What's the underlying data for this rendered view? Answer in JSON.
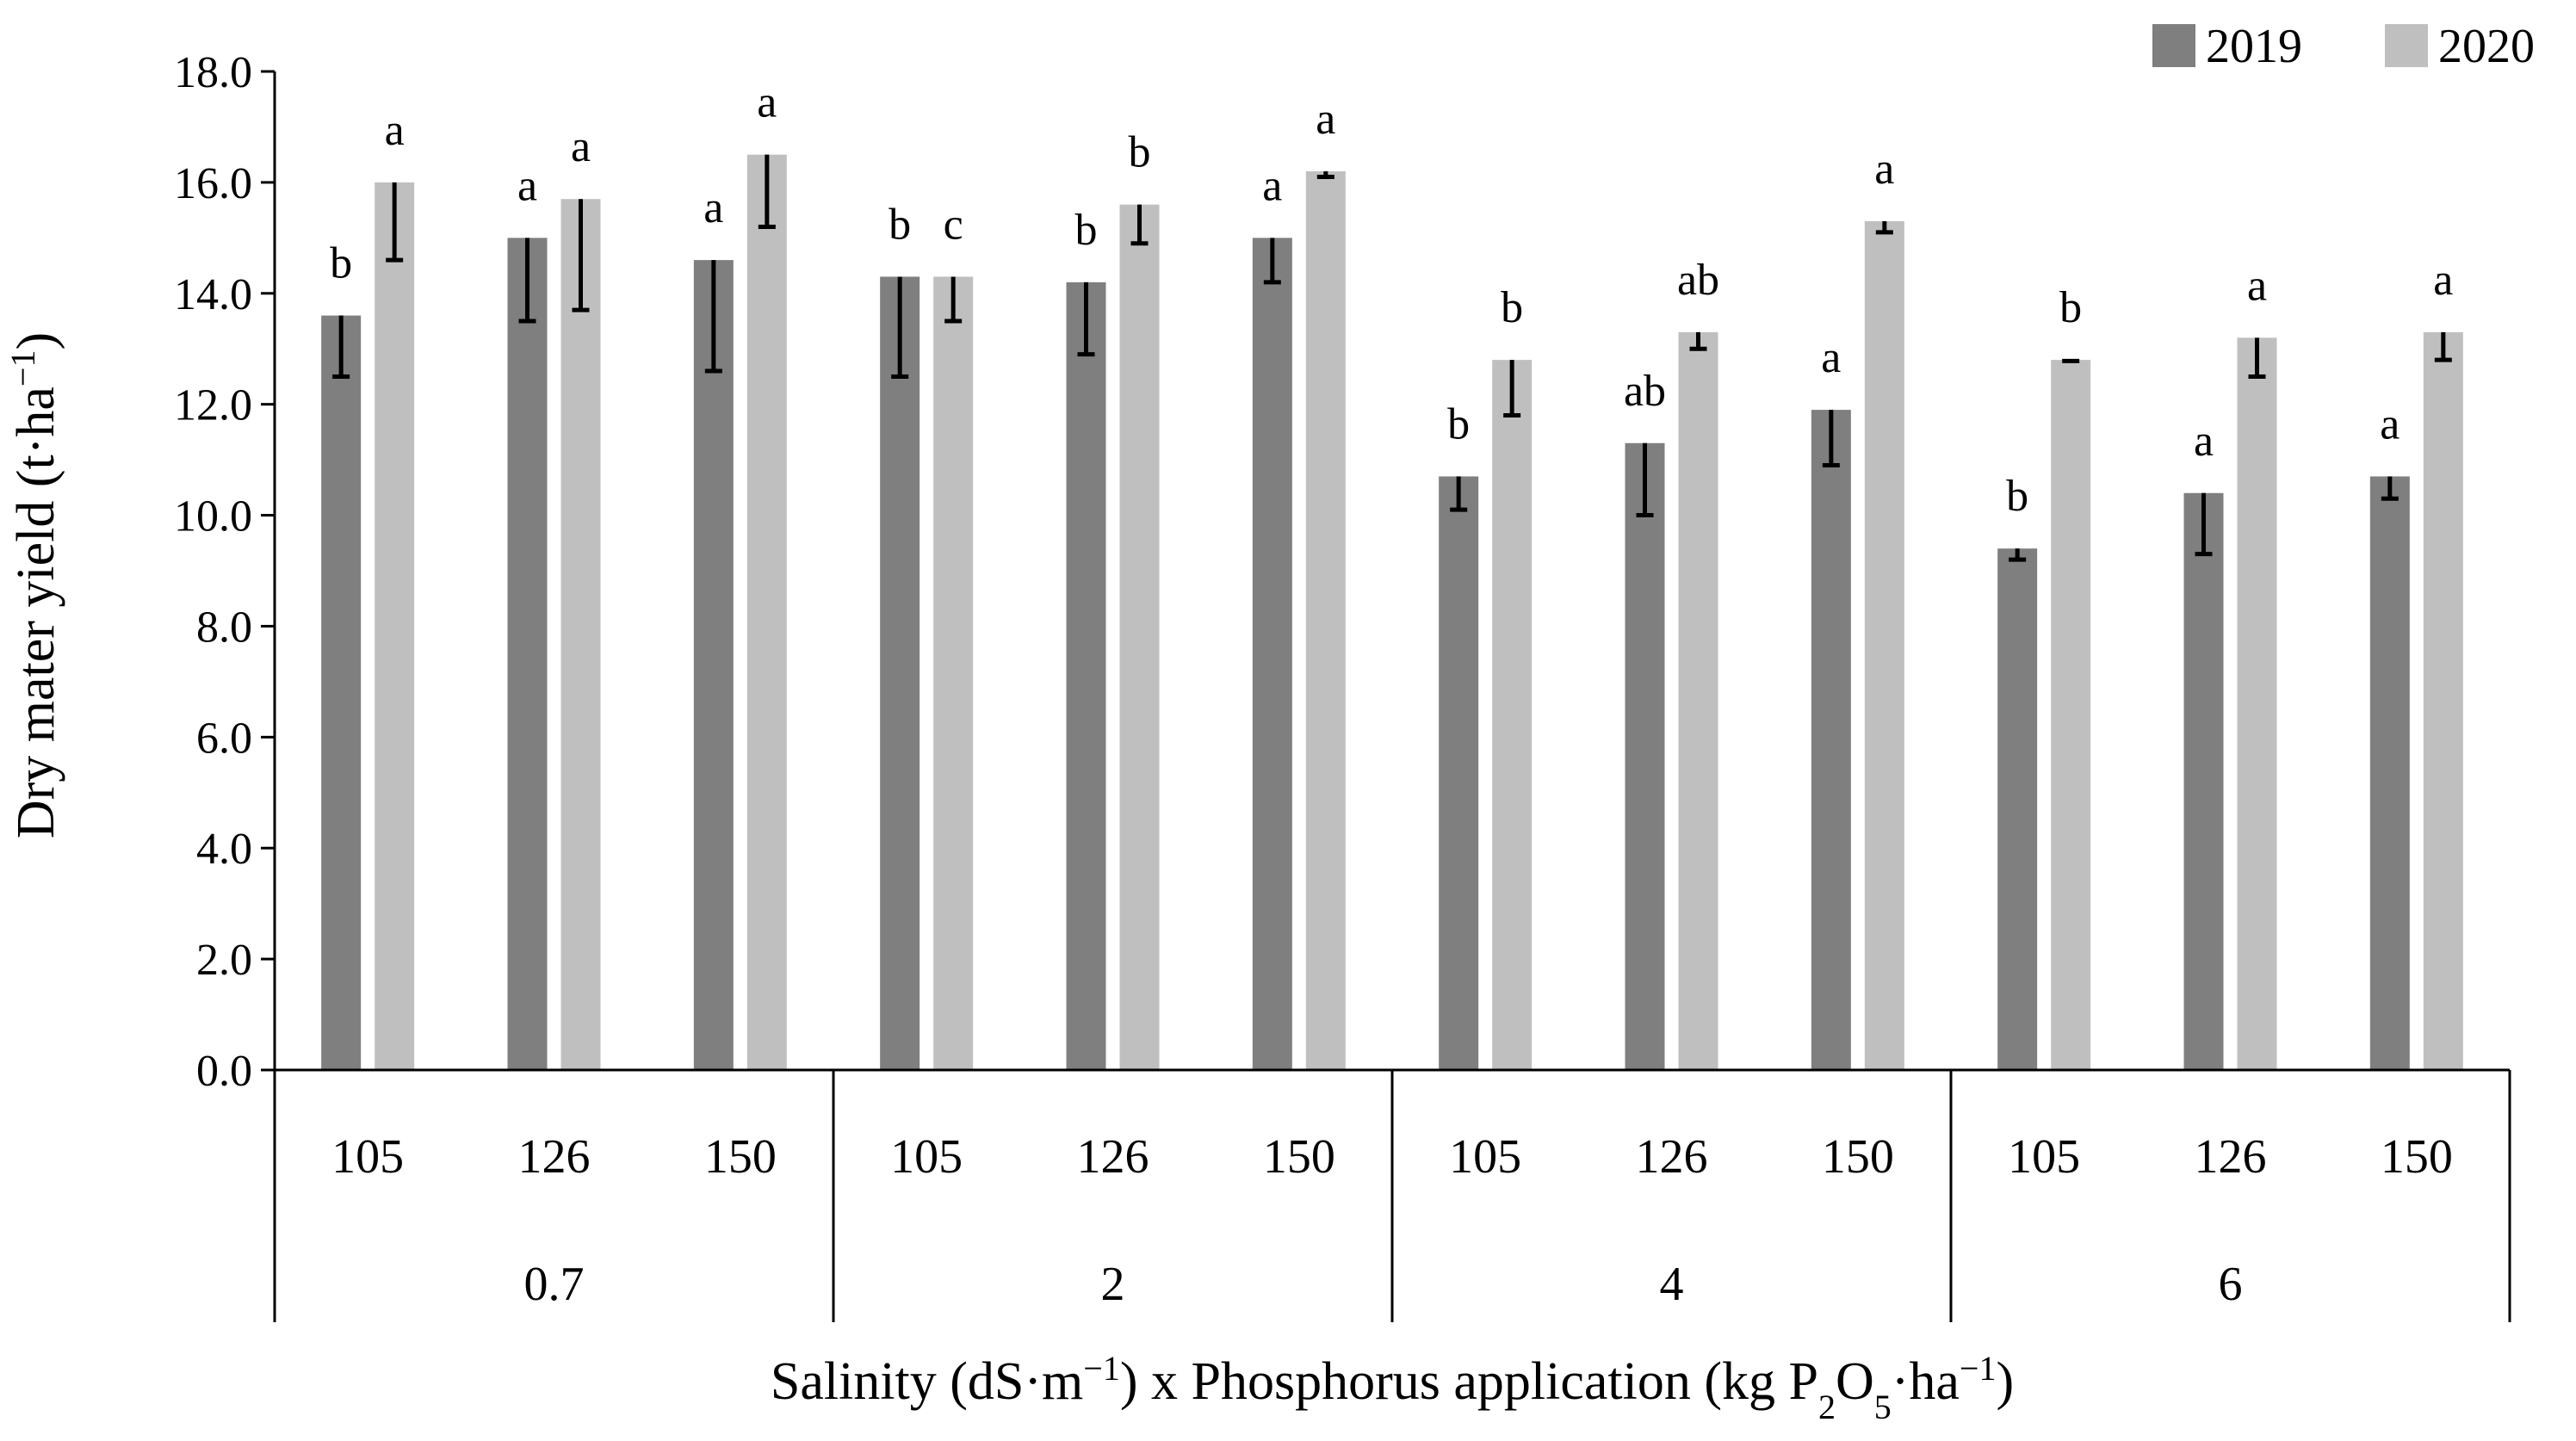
{
  "chart_data": {
    "type": "bar",
    "ylabel_parts": [
      "Dry mater yield (t·ha",
      "−1",
      ")"
    ],
    "xlabel_parts": [
      "Salinity (dS·m",
      "−1",
      ") x Phosphorus application (kg P",
      "2",
      "O",
      "5",
      "·ha",
      "−1",
      ")"
    ],
    "ylim": [
      0,
      18
    ],
    "yticks": [
      "0.0",
      "2.0",
      "4.0",
      "6.0",
      "8.0",
      "10.0",
      "12.0",
      "14.0",
      "16.0",
      "18.0"
    ],
    "groups": [
      "0.7",
      "2",
      "4",
      "6"
    ],
    "categories": [
      "105",
      "126",
      "150",
      "105",
      "126",
      "150",
      "105",
      "126",
      "150",
      "105",
      "126",
      "150"
    ],
    "series": [
      {
        "name": "2019",
        "color": "#7f7f7f",
        "values": [
          13.6,
          15.0,
          14.6,
          14.3,
          14.2,
          15.0,
          10.7,
          11.3,
          11.9,
          9.4,
          10.4,
          10.7
        ],
        "errors": [
          1.1,
          1.5,
          2.0,
          1.8,
          1.3,
          0.8,
          0.6,
          1.3,
          1.0,
          0.2,
          1.1,
          0.4
        ],
        "letters": [
          "b",
          "a",
          "a",
          "b",
          "b",
          "a",
          "b",
          "ab",
          "a",
          "b",
          "a",
          "a"
        ]
      },
      {
        "name": "2020",
        "color": "#bfbfbf",
        "values": [
          16.0,
          15.7,
          16.5,
          14.3,
          15.6,
          16.2,
          12.8,
          13.3,
          15.3,
          12.8,
          13.2,
          13.3
        ],
        "errors": [
          1.4,
          2.0,
          1.3,
          0.8,
          0.7,
          0.1,
          1.0,
          0.3,
          0.2,
          0.02,
          0.7,
          0.5
        ],
        "letters": [
          "a",
          "a",
          "a",
          "c",
          "b",
          "a",
          "b",
          "ab",
          "a",
          "b",
          "a",
          "a"
        ]
      }
    ]
  }
}
